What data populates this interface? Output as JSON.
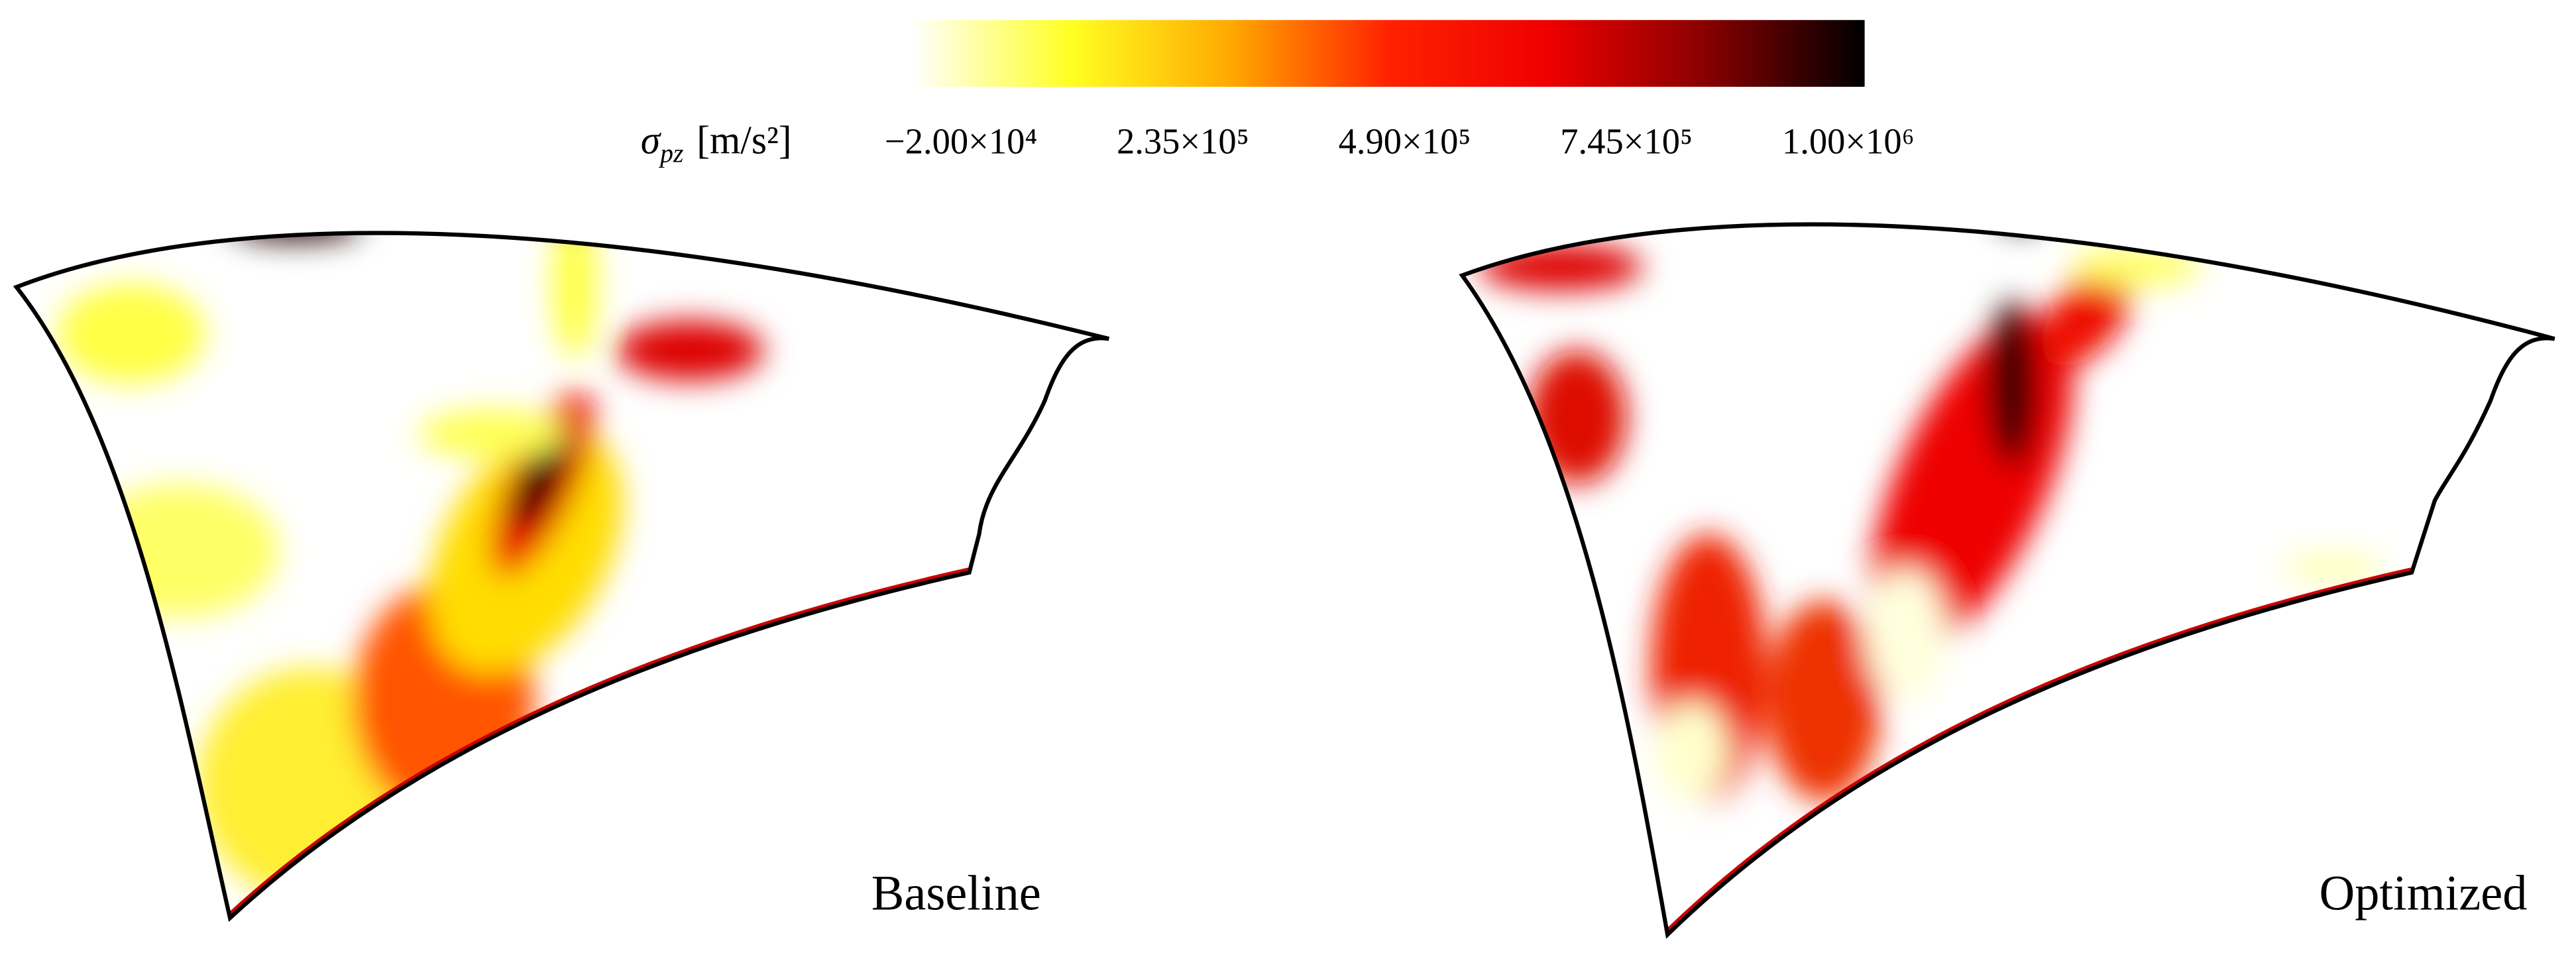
{
  "chart_data": {
    "type": "contour",
    "colorbar": {
      "symbol": "σ",
      "subscript": "pz",
      "unit": "[m/s²]",
      "colormap": [
        "#ffffff",
        "#ffff22",
        "#ffaa00",
        "#ff2200",
        "#ee0000",
        "#880000",
        "#000000"
      ],
      "clim": [
        -20000,
        1000000
      ],
      "cticks": [
        {
          "value": -20000,
          "label": "−2.00×10⁴"
        },
        {
          "value": 235000,
          "label": "2.35×10⁵"
        },
        {
          "value": 490000,
          "label": "4.90×10⁵"
        },
        {
          "value": 745000,
          "label": "7.45×10⁵"
        },
        {
          "value": 1000000,
          "label": "1.00×10⁶"
        }
      ]
    },
    "panels": [
      {
        "label": "Baseline"
      },
      {
        "label": "Optimized"
      }
    ]
  }
}
